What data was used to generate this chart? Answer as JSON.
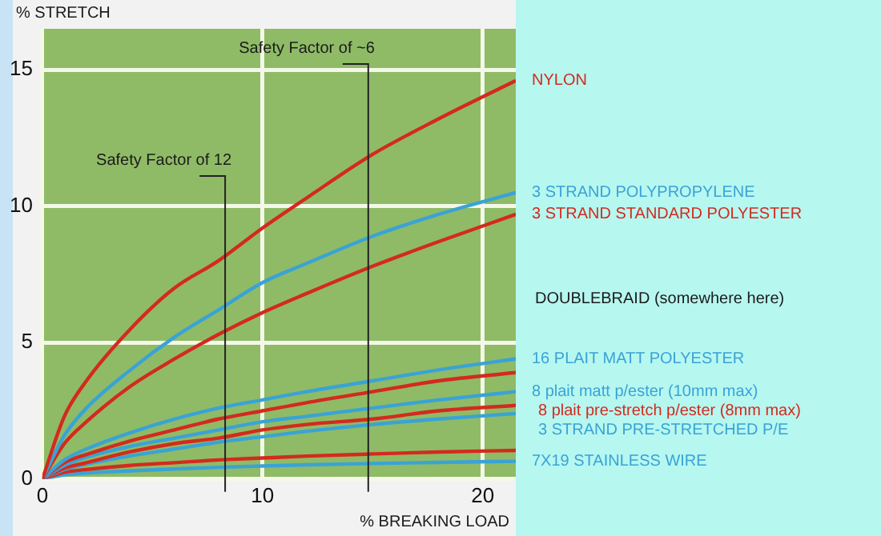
{
  "chart_data": {
    "type": "line",
    "xlabel": "% BREAKING LOAD",
    "ylabel": "% STRETCH",
    "x": [
      0,
      1,
      2,
      4,
      6,
      8,
      10,
      12,
      15,
      18,
      21.5
    ],
    "xlim": [
      0,
      21.5
    ],
    "ylim": [
      0,
      16.5
    ],
    "xticks": [
      0,
      10,
      20
    ],
    "yticks": [
      0,
      5,
      10,
      15
    ],
    "grid": true,
    "legend": false,
    "marker": "none",
    "line_style": "solid",
    "series": [
      {
        "name": "NYLON",
        "color": "#d42a1e",
        "values": [
          0,
          2.3,
          3.6,
          5.5,
          7.0,
          8.0,
          9.2,
          10.3,
          11.9,
          13.2,
          14.6
        ]
      },
      {
        "name": "3 STRAND POLYPROPYLENE",
        "color": "#3aa3d6",
        "values": [
          0,
          1.6,
          2.6,
          4.0,
          5.2,
          6.2,
          7.2,
          7.9,
          8.9,
          9.7,
          10.5
        ]
      },
      {
        "name": "3 STRAND STANDARD POLYESTER",
        "color": "#d42a1e",
        "values": [
          0,
          1.3,
          2.1,
          3.4,
          4.4,
          5.3,
          6.1,
          6.8,
          7.8,
          8.7,
          9.7
        ]
      },
      {
        "name": "16 PLAIT MATT POLYESTER",
        "color": "#3aa3d6",
        "values": [
          0,
          0.7,
          1.1,
          1.7,
          2.2,
          2.6,
          2.9,
          3.2,
          3.6,
          4.0,
          4.4
        ]
      },
      {
        "color": "#d42a1e",
        "values": [
          0,
          0.6,
          0.9,
          1.4,
          1.8,
          2.2,
          2.5,
          2.8,
          3.2,
          3.6,
          3.9
        ]
      },
      {
        "name": "8 plait matt p/ester (10mm max)",
        "color": "#3aa3d6",
        "values": [
          0,
          0.5,
          0.8,
          1.2,
          1.5,
          1.8,
          2.1,
          2.3,
          2.6,
          2.9,
          3.2
        ]
      },
      {
        "name": "8 plait pre-stretch p/ester (8mm max)",
        "color": "#d42a1e",
        "values": [
          0,
          0.4,
          0.6,
          1.0,
          1.3,
          1.5,
          1.8,
          2.0,
          2.2,
          2.5,
          2.7
        ]
      },
      {
        "name": "3 STRAND PRE-STRETCHED P/E",
        "color": "#3aa3d6",
        "values": [
          0,
          0.35,
          0.55,
          0.85,
          1.1,
          1.35,
          1.55,
          1.75,
          2.0,
          2.2,
          2.4
        ]
      },
      {
        "color": "#d42a1e",
        "values": [
          0,
          0.25,
          0.35,
          0.5,
          0.6,
          0.7,
          0.77,
          0.84,
          0.92,
          0.99,
          1.05
        ]
      },
      {
        "name": "7X19 STAINLESS WIRE",
        "color": "#3aa3d6",
        "values": [
          0,
          0.15,
          0.22,
          0.3,
          0.37,
          0.43,
          0.48,
          0.52,
          0.57,
          0.61,
          0.65
        ]
      }
    ],
    "ref_lines": [
      {
        "axis": "x",
        "value": 8.3,
        "label": "Safety Factor of 12",
        "color": "#222222"
      },
      {
        "axis": "x",
        "value": 14.8,
        "label": "Safety Factor of ~6",
        "color": "#222222"
      }
    ],
    "annotations": [
      "DOUBLEBRAID (somewhere here)"
    ]
  }
}
